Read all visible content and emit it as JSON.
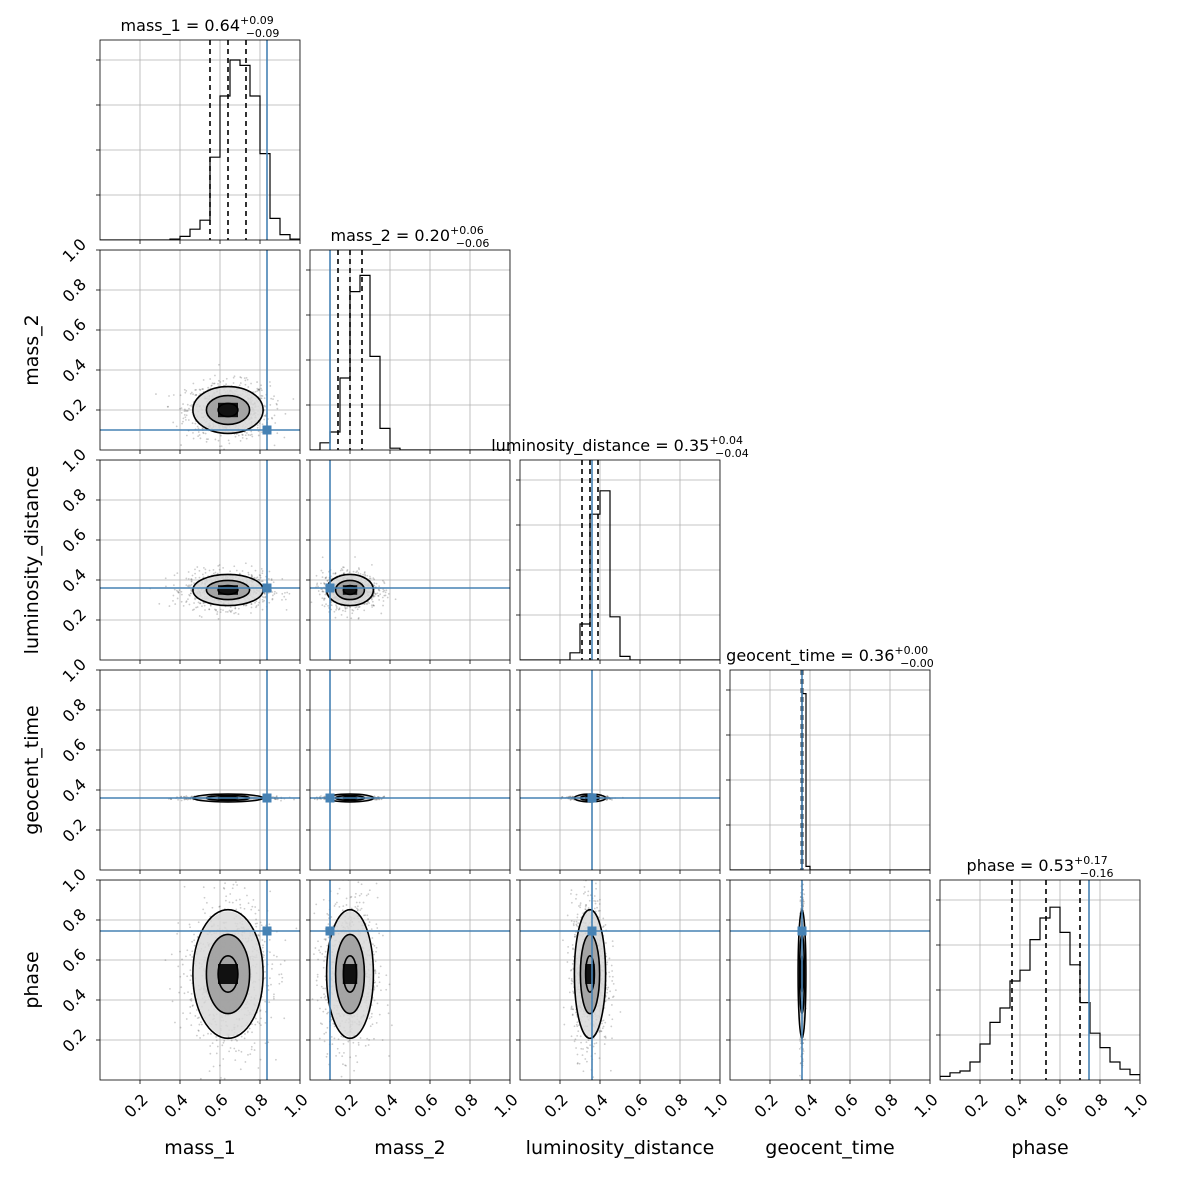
{
  "chart_data": {
    "type": "corner",
    "parameters": [
      "mass_1",
      "mass_2",
      "luminosity_distance",
      "geocent_time",
      "phase"
    ],
    "axis_range": [
      0,
      1
    ],
    "tick_labels": [
      "0.2",
      "0.4",
      "0.6",
      "0.8",
      "1.0"
    ],
    "tick_values": [
      0.2,
      0.4,
      0.6,
      0.8,
      1.0
    ],
    "grid": true,
    "truth_color": "#4682b4",
    "titles": [
      {
        "param": "mass_1",
        "prefix": "mass_1 = ",
        "median": "0.64",
        "plus": "+0.09",
        "minus": "−0.09"
      },
      {
        "param": "mass_2",
        "prefix": "mass_2 = ",
        "median": "0.20",
        "plus": "+0.06",
        "minus": "−0.06"
      },
      {
        "param": "luminosity_distance",
        "prefix": "luminosity_distance = ",
        "median": "0.35",
        "plus": "+0.04",
        "minus": "−0.04"
      },
      {
        "param": "geocent_time",
        "prefix": "geocent_time = ",
        "median": "0.36",
        "plus": "+0.00",
        "minus": "−0.00"
      },
      {
        "param": "phase",
        "prefix": "phase = ",
        "median": "0.53",
        "plus": "+0.17",
        "minus": "−0.16"
      }
    ],
    "truths": [
      0.835,
      0.1,
      0.36,
      0.36,
      0.745
    ],
    "quantiles": [
      [
        0.55,
        0.64,
        0.73
      ],
      [
        0.14,
        0.2,
        0.26
      ],
      [
        0.31,
        0.35,
        0.39
      ],
      [
        0.357,
        0.36,
        0.363
      ],
      [
        0.36,
        0.53,
        0.7
      ]
    ],
    "histograms": [
      {
        "bin_start": 0.0,
        "bin_width": 0.05,
        "counts": [
          0,
          0,
          0,
          0,
          0,
          0,
          0,
          0.005,
          0.02,
          0.06,
          0.11,
          0.46,
          0.8,
          1.0,
          0.97,
          0.8,
          0.48,
          0.12,
          0.03,
          0.005
        ]
      },
      {
        "bin_start": 0.0,
        "bin_width": 0.05,
        "counts": [
          0,
          0.04,
          0.1,
          0.4,
          0.88,
          0.97,
          0.52,
          0.12,
          0.01,
          0,
          0,
          0,
          0,
          0,
          0,
          0,
          0,
          0,
          0,
          0
        ]
      },
      {
        "bin_start": 0.0,
        "bin_width": 0.05,
        "counts": [
          0,
          0,
          0,
          0,
          0,
          0.04,
          0.2,
          0.81,
          0.94,
          0.24,
          0.02,
          0,
          0,
          0,
          0,
          0,
          0,
          0,
          0,
          0
        ]
      },
      {
        "bin_start": 0.0,
        "bin_width": 0.02,
        "counts": [
          0,
          0,
          0,
          0,
          0,
          0,
          0,
          0,
          0,
          0,
          0,
          0,
          0,
          0,
          0,
          0,
          0,
          0,
          0.98,
          0.02,
          0,
          0,
          0,
          0,
          0,
          0,
          0,
          0,
          0,
          0,
          0,
          0,
          0,
          0,
          0,
          0,
          0,
          0,
          0,
          0,
          0,
          0,
          0,
          0,
          0,
          0,
          0,
          0,
          0,
          0
        ]
      },
      {
        "bin_start": 0.0,
        "bin_width": 0.05,
        "counts": [
          0.02,
          0.04,
          0.05,
          0.1,
          0.2,
          0.32,
          0.4,
          0.55,
          0.61,
          0.78,
          0.9,
          0.96,
          0.82,
          0.64,
          0.43,
          0.26,
          0.18,
          0.1,
          0.06,
          0.03
        ]
      }
    ],
    "posteriors": [
      {
        "param": "mass_1",
        "mean": 0.64,
        "sd": 0.09
      },
      {
        "param": "mass_2",
        "mean": 0.2,
        "sd": 0.06
      },
      {
        "param": "luminosity_distance",
        "mean": 0.35,
        "sd": 0.04
      },
      {
        "param": "geocent_time",
        "mean": 0.36,
        "sd": 0.004
      },
      {
        "param": "phase",
        "mean": 0.53,
        "sd": 0.165
      }
    ]
  }
}
